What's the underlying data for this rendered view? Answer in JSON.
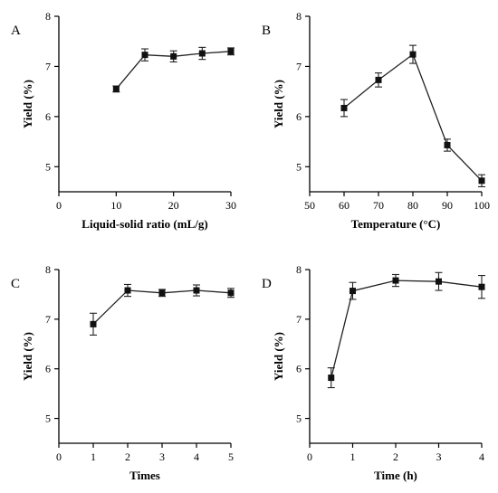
{
  "chart_data": [
    {
      "panel": "A",
      "type": "line",
      "xlabel": "Liquid-solid ratio (mL/g)",
      "ylabel": "Yield (%)",
      "xlim": [
        0,
        30
      ],
      "ylim": [
        4.5,
        8
      ],
      "xticks": [
        "0",
        "10",
        "20",
        "30"
      ],
      "xtick_values": [
        0,
        10,
        20,
        30
      ],
      "yticks": [
        "5",
        "6",
        "7",
        "8"
      ],
      "ytick_values": [
        5,
        6,
        7,
        8
      ],
      "x": [
        10,
        15,
        20,
        25,
        30
      ],
      "y": [
        6.55,
        7.23,
        7.2,
        7.26,
        7.3
      ],
      "err": [
        0.06,
        0.12,
        0.11,
        0.12,
        0.07
      ]
    },
    {
      "panel": "B",
      "type": "line",
      "xlabel": "Temperature (°C)",
      "ylabel": "Yield (%)",
      "xlim": [
        50,
        100
      ],
      "ylim": [
        4.5,
        8
      ],
      "xticks": [
        "50",
        "60",
        "70",
        "80",
        "90",
        "100"
      ],
      "xtick_values": [
        50,
        60,
        70,
        80,
        90,
        100
      ],
      "yticks": [
        "5",
        "6",
        "7",
        "8"
      ],
      "ytick_values": [
        5,
        6,
        7,
        8
      ],
      "x": [
        60,
        70,
        80,
        90,
        100
      ],
      "y": [
        6.17,
        6.73,
        7.24,
        5.43,
        4.72
      ],
      "err": [
        0.17,
        0.14,
        0.18,
        0.12,
        0.12
      ]
    },
    {
      "panel": "C",
      "type": "line",
      "xlabel": "Times",
      "ylabel": "Yield (%)",
      "xlim": [
        0,
        5
      ],
      "ylim": [
        4.5,
        8
      ],
      "xticks": [
        "0",
        "1",
        "2",
        "3",
        "4",
        "5"
      ],
      "xtick_values": [
        0,
        1,
        2,
        3,
        4,
        5
      ],
      "yticks": [
        "5",
        "6",
        "7",
        "8"
      ],
      "ytick_values": [
        5,
        6,
        7,
        8
      ],
      "x": [
        1,
        2,
        3,
        4,
        5
      ],
      "y": [
        6.9,
        7.58,
        7.53,
        7.58,
        7.53
      ],
      "err": [
        0.22,
        0.12,
        0.07,
        0.11,
        0.09
      ]
    },
    {
      "panel": "D",
      "type": "line",
      "xlabel": "Time (h)",
      "ylabel": "Yield (%)",
      "xlim": [
        0,
        4
      ],
      "ylim": [
        4.5,
        8
      ],
      "xticks": [
        "0",
        "1",
        "2",
        "3",
        "4"
      ],
      "xtick_values": [
        0,
        1,
        2,
        3,
        4
      ],
      "yticks": [
        "5",
        "6",
        "7",
        "8"
      ],
      "ytick_values": [
        5,
        6,
        7,
        8
      ],
      "x": [
        0.5,
        1,
        2,
        3,
        4
      ],
      "y": [
        5.82,
        7.57,
        7.78,
        7.76,
        7.65
      ],
      "err": [
        0.2,
        0.17,
        0.12,
        0.18,
        0.23
      ]
    }
  ]
}
